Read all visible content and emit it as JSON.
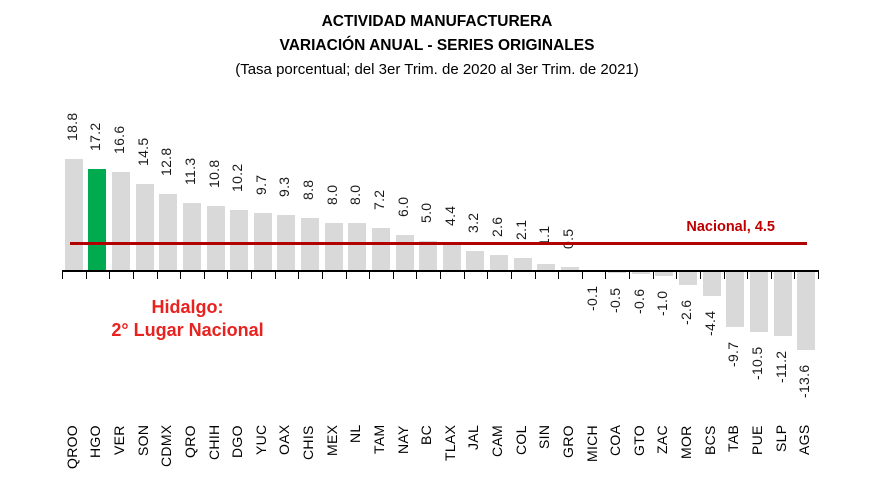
{
  "chart_data": {
    "type": "bar",
    "title": "ACTIVIDAD MANUFACTURERA",
    "subtitle": "VARIACIÓN ANUAL - SERIES ORIGINALES",
    "caption": "(Tasa porcentual; del 3er Trim. de 2020 al 3er Trim. de 2021)",
    "categories": [
      "QROO",
      "HGO",
      "VER",
      "SON",
      "CDMX",
      "QRO",
      "CHIH",
      "DGO",
      "YUC",
      "OAX",
      "CHIS",
      "MEX",
      "NL",
      "TAM",
      "NAY",
      "BC",
      "TLAX",
      "JAL",
      "CAM",
      "COL",
      "SIN",
      "GRO",
      "MICH",
      "COA",
      "GTO",
      "ZAC",
      "MOR",
      "BCS",
      "TAB",
      "PUE",
      "SLP",
      "AGS"
    ],
    "values": [
      18.8,
      17.2,
      16.6,
      14.5,
      12.8,
      11.3,
      10.8,
      10.2,
      9.7,
      9.3,
      8.8,
      8.0,
      8.0,
      7.2,
      6.0,
      5.0,
      4.4,
      3.2,
      2.6,
      2.1,
      1.1,
      0.5,
      -0.1,
      -0.5,
      -0.6,
      -1.0,
      -2.6,
      -4.4,
      -9.7,
      -10.5,
      -11.2,
      -13.6
    ],
    "value_format_decimals": 1,
    "highlight_category": "HGO",
    "bar_color": "#D9D9D9",
    "highlight_color": "#00AB50",
    "axis_color": "#000000",
    "value_axis_visible": false,
    "grid": false,
    "legend": false,
    "ylim": [
      -15,
      20
    ],
    "reference_line": {
      "label": "Nacional, 4.5",
      "value": 4.5,
      "line_color": "#B00000",
      "label_color": "#C00000"
    },
    "annotation": {
      "line1": "Hidalgo:",
      "line2": "2° Lugar Nacional",
      "color": "#E8221F"
    }
  }
}
